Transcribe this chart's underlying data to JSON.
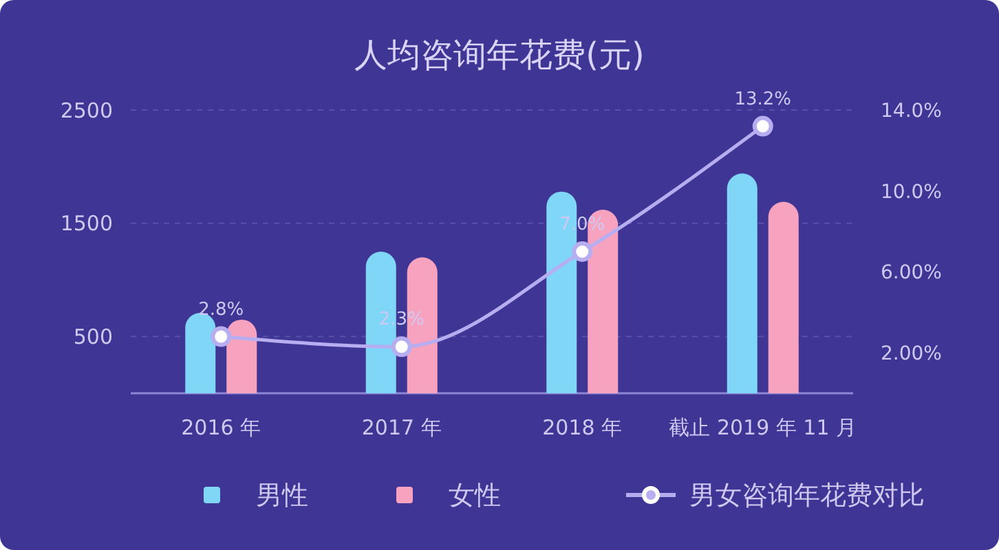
{
  "chart_data": {
    "type": "bar",
    "title": "人均咨询年花费(元)",
    "categories": [
      "2016 年",
      "2017 年",
      "2018 年",
      "截止 2019 年 11 月"
    ],
    "series": [
      {
        "name": "男性",
        "color": "#7fd6f7",
        "values": [
          710,
          1250,
          1780,
          1940
        ]
      },
      {
        "name": "女性",
        "color": "#f7a3c0",
        "values": [
          650,
          1200,
          1620,
          1690
        ]
      },
      {
        "name": "男女咨询年花费对比",
        "type": "line",
        "axis": "y2",
        "color": "#b6aef0",
        "marker": "circle",
        "values": [
          2.8,
          2.3,
          7.0,
          13.2
        ],
        "value_labels": [
          "2.8%",
          "2.3%",
          "7.0%",
          "13.2%"
        ]
      }
    ],
    "ylim": [
      0,
      2500
    ],
    "yticks": [
      500,
      1500,
      2500
    ],
    "y2lim": [
      0,
      14
    ],
    "y2ticks": [
      {
        "value": 2,
        "label": "2.00%"
      },
      {
        "value": 6,
        "label": "6.00%"
      },
      {
        "value": 10,
        "label": "10.0%"
      },
      {
        "value": 14,
        "label": "14.0%"
      }
    ],
    "grid": "y",
    "legend": "bottom"
  }
}
